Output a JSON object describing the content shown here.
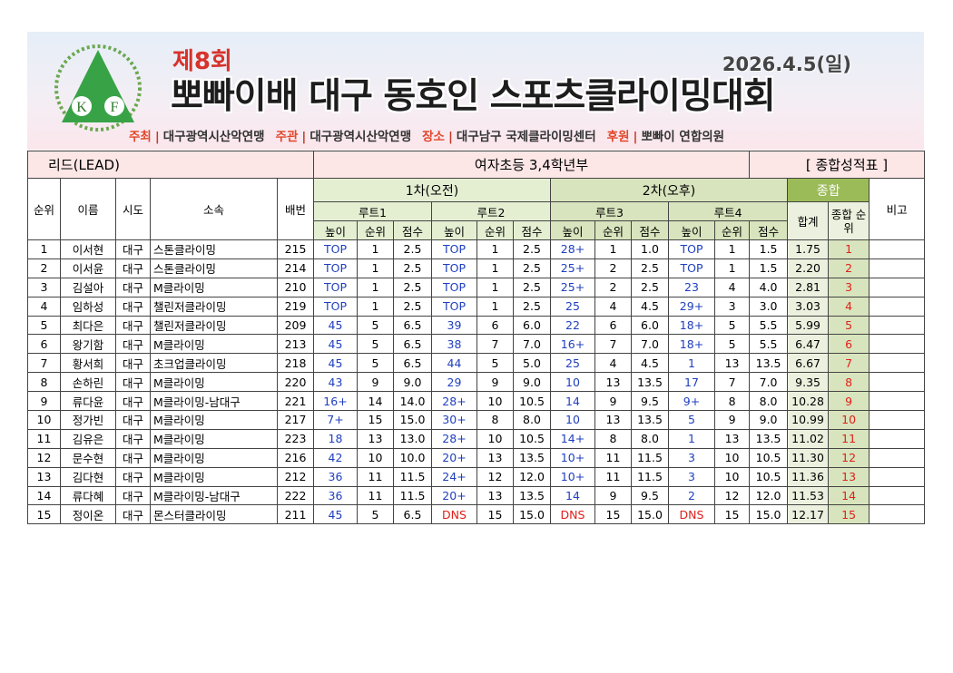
{
  "header": {
    "round": "제8회",
    "title": "뽀빠이배 대구 동호인 스포츠클라이밍대회",
    "date": "2026.4.5(일)",
    "logo": [
      "K",
      "F"
    ],
    "sponsors": [
      {
        "role": "주최",
        "name": "대구광역시산악연맹"
      },
      {
        "role": "주관",
        "name": "대구광역시산악연맹"
      },
      {
        "role": "장소",
        "name": "대구남구 국제클라이밍센터"
      },
      {
        "role": "후원",
        "name": "뽀빠이 연합의원"
      }
    ]
  },
  "table": {
    "event": "리드(LEAD)",
    "division": "여자초등 3,4학년부",
    "sheet": "[ 종합성적표 ]",
    "columns": {
      "rank": "순위",
      "name": "이름",
      "region": "시도",
      "club": "소속",
      "bib": "배번",
      "round1": "1차(오전)",
      "round2": "2차(오후)",
      "overall": "종합",
      "note": "비고",
      "routes": [
        "루트1",
        "루트2",
        "루트3",
        "루트4"
      ],
      "sub": [
        "높이",
        "순위",
        "점수"
      ],
      "total": "합계",
      "final": "종합 순위"
    },
    "rows": [
      [
        "1",
        "이서현",
        "대구",
        "스톤클라이밍",
        "215",
        "TOP",
        "1",
        "2.5",
        "TOP",
        "1",
        "2.5",
        "28+",
        "1",
        "1.0",
        "TOP",
        "1",
        "1.5",
        "1.75",
        "1"
      ],
      [
        "2",
        "이서윤",
        "대구",
        "스톤클라이밍",
        "214",
        "TOP",
        "1",
        "2.5",
        "TOP",
        "1",
        "2.5",
        "25+",
        "2",
        "2.5",
        "TOP",
        "1",
        "1.5",
        "2.20",
        "2"
      ],
      [
        "3",
        "김설아",
        "대구",
        "M클라이밍",
        "210",
        "TOP",
        "1",
        "2.5",
        "TOP",
        "1",
        "2.5",
        "25+",
        "2",
        "2.5",
        "23",
        "4",
        "4.0",
        "2.81",
        "3"
      ],
      [
        "4",
        "임하성",
        "대구",
        "챌린저클라이밍",
        "219",
        "TOP",
        "1",
        "2.5",
        "TOP",
        "1",
        "2.5",
        "25",
        "4",
        "4.5",
        "29+",
        "3",
        "3.0",
        "3.03",
        "4"
      ],
      [
        "5",
        "최다은",
        "대구",
        "챌린저클라이밍",
        "209",
        "45",
        "5",
        "6.5",
        "39",
        "6",
        "6.0",
        "22",
        "6",
        "6.0",
        "18+",
        "5",
        "5.5",
        "5.99",
        "5"
      ],
      [
        "6",
        "왕기함",
        "대구",
        "M클라이밍",
        "213",
        "45",
        "5",
        "6.5",
        "38",
        "7",
        "7.0",
        "16+",
        "7",
        "7.0",
        "18+",
        "5",
        "5.5",
        "6.47",
        "6"
      ],
      [
        "7",
        "황서희",
        "대구",
        "초크업클라이밍",
        "218",
        "45",
        "5",
        "6.5",
        "44",
        "5",
        "5.0",
        "25",
        "4",
        "4.5",
        "1",
        "13",
        "13.5",
        "6.67",
        "7"
      ],
      [
        "8",
        "손하린",
        "대구",
        "M클라이밍",
        "220",
        "43",
        "9",
        "9.0",
        "29",
        "9",
        "9.0",
        "10",
        "13",
        "13.5",
        "17",
        "7",
        "7.0",
        "9.35",
        "8"
      ],
      [
        "9",
        "류다윤",
        "대구",
        "M클라이밍-남대구",
        "221",
        "16+",
        "14",
        "14.0",
        "28+",
        "10",
        "10.5",
        "14",
        "9",
        "9.5",
        "9+",
        "8",
        "8.0",
        "10.28",
        "9"
      ],
      [
        "10",
        "정가빈",
        "대구",
        "M클라이밍",
        "217",
        "7+",
        "15",
        "15.0",
        "30+",
        "8",
        "8.0",
        "10",
        "13",
        "13.5",
        "5",
        "9",
        "9.0",
        "10.99",
        "10"
      ],
      [
        "11",
        "김유은",
        "대구",
        "M클라이밍",
        "223",
        "18",
        "13",
        "13.0",
        "28+",
        "10",
        "10.5",
        "14+",
        "8",
        "8.0",
        "1",
        "13",
        "13.5",
        "11.02",
        "11"
      ],
      [
        "12",
        "문수현",
        "대구",
        "M클라이밍",
        "216",
        "42",
        "10",
        "10.0",
        "20+",
        "13",
        "13.5",
        "10+",
        "11",
        "11.5",
        "3",
        "10",
        "10.5",
        "11.30",
        "12"
      ],
      [
        "13",
        "김다현",
        "대구",
        "M클라이밍",
        "212",
        "36",
        "11",
        "11.5",
        "24+",
        "12",
        "12.0",
        "10+",
        "11",
        "11.5",
        "3",
        "10",
        "10.5",
        "11.36",
        "13"
      ],
      [
        "14",
        "류다혜",
        "대구",
        "M클라이밍-남대구",
        "222",
        "36",
        "11",
        "11.5",
        "20+",
        "13",
        "13.5",
        "14",
        "9",
        "9.5",
        "2",
        "12",
        "12.0",
        "11.53",
        "14"
      ],
      [
        "15",
        "정이온",
        "대구",
        "몬스터클라이밍",
        "211",
        "45",
        "5",
        "6.5",
        "DNS",
        "15",
        "15.0",
        "DNS",
        "15",
        "15.0",
        "DNS",
        "15",
        "15.0",
        "12.17",
        "15"
      ]
    ]
  }
}
